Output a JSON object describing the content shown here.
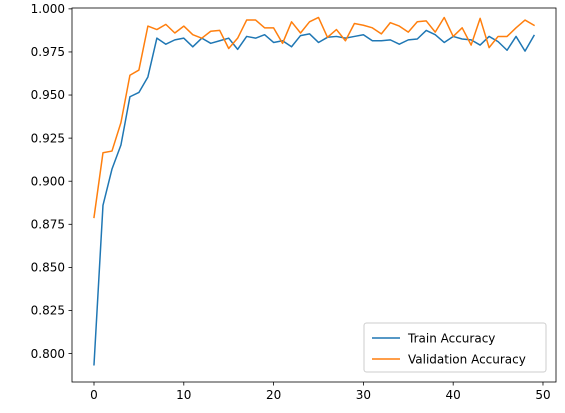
{
  "chart_data": {
    "type": "line",
    "title": "",
    "xlabel": "",
    "ylabel": "",
    "xlim": [
      -2.45,
      51.45
    ],
    "ylim": [
      0.7835,
      1.0005
    ],
    "x_ticks": [
      0,
      10,
      20,
      30,
      40,
      50
    ],
    "y_ticks": [
      0.8,
      0.825,
      0.85,
      0.875,
      0.9,
      0.925,
      0.95,
      0.975,
      1.0
    ],
    "x_tick_labels": [
      "0",
      "10",
      "20",
      "30",
      "40",
      "50"
    ],
    "y_tick_labels": [
      "0.800",
      "0.825",
      "0.850",
      "0.875",
      "0.900",
      "0.925",
      "0.950",
      "0.975",
      "1.000"
    ],
    "grid": false,
    "legend_position": "lower-right",
    "x": [
      0,
      1,
      2,
      3,
      4,
      5,
      6,
      7,
      8,
      9,
      10,
      11,
      12,
      13,
      14,
      15,
      16,
      17,
      18,
      19,
      20,
      21,
      22,
      23,
      24,
      25,
      26,
      27,
      28,
      29,
      30,
      31,
      32,
      33,
      34,
      35,
      36,
      37,
      38,
      39,
      40,
      41,
      42,
      43,
      44,
      45,
      46,
      47,
      48,
      49
    ],
    "series": [
      {
        "name": "Train Accuracy",
        "color": "#1f77b4",
        "values": [
          0.7935,
          0.886,
          0.907,
          0.921,
          0.949,
          0.9515,
          0.9605,
          0.983,
          0.9795,
          0.982,
          0.983,
          0.978,
          0.983,
          0.98,
          0.9815,
          0.983,
          0.9765,
          0.984,
          0.983,
          0.985,
          0.9805,
          0.9815,
          0.978,
          0.9845,
          0.9855,
          0.9805,
          0.9835,
          0.984,
          0.983,
          0.984,
          0.985,
          0.9815,
          0.9815,
          0.982,
          0.9795,
          0.982,
          0.9825,
          0.9875,
          0.985,
          0.9805,
          0.984,
          0.9825,
          0.982,
          0.979,
          0.984,
          0.981,
          0.976,
          0.984,
          0.9755,
          0.9845
        ]
      },
      {
        "name": "Validation Accuracy",
        "color": "#ff7f0e",
        "values": [
          0.879,
          0.9165,
          0.9175,
          0.934,
          0.9615,
          0.9645,
          0.99,
          0.988,
          0.991,
          0.986,
          0.99,
          0.985,
          0.983,
          0.987,
          0.9875,
          0.977,
          0.983,
          0.9935,
          0.9935,
          0.989,
          0.989,
          0.98,
          0.9925,
          0.986,
          0.9925,
          0.995,
          0.9835,
          0.988,
          0.9815,
          0.9915,
          0.9905,
          0.989,
          0.9855,
          0.992,
          0.99,
          0.9865,
          0.9925,
          0.993,
          0.9865,
          0.995,
          0.984,
          0.989,
          0.979,
          0.9945,
          0.9775,
          0.984,
          0.984,
          0.989,
          0.9935,
          0.9905
        ]
      }
    ]
  }
}
